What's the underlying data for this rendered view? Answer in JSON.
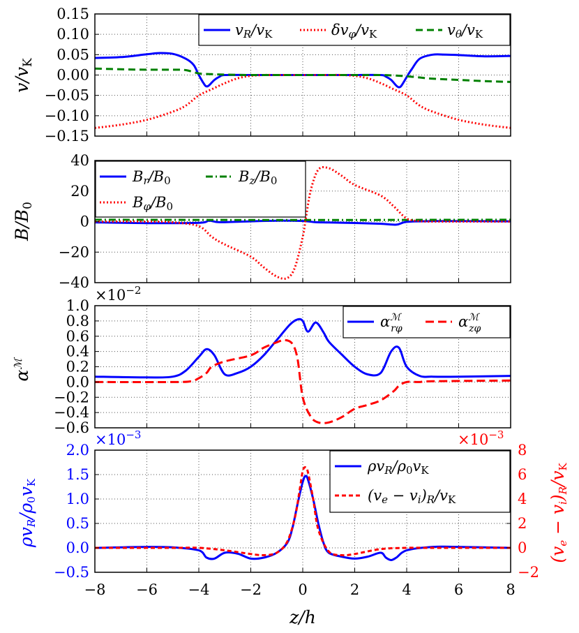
{
  "colors": {
    "blue": "#0000ff",
    "red": "#ff0000",
    "green": "#008000",
    "black": "#000000",
    "grid": "#555555"
  },
  "x_axis": {
    "label": "z/h",
    "ticks": [
      -8,
      -6,
      -4,
      -2,
      0,
      2,
      4,
      6,
      8
    ],
    "tick_labels": [
      "−8",
      "−6",
      "−4",
      "−2",
      "0",
      "2",
      "4",
      "6",
      "8"
    ],
    "range": [
      -8,
      8
    ]
  },
  "chart_data": [
    {
      "type": "line",
      "ylabel": "v/vK",
      "ylim": [
        -0.15,
        0.15
      ],
      "yticks": [
        -0.15,
        -0.1,
        -0.05,
        0.0,
        0.05,
        0.1,
        0.15
      ],
      "ytick_labels": [
        "−0.15",
        "−0.10",
        "−0.05",
        "0.00",
        "0.05",
        "0.10",
        "0.15"
      ],
      "legend_position": "top-right",
      "series": [
        {
          "name": "v_R/v_K",
          "color": "blue",
          "dash": "solid",
          "x": [
            -8,
            -7,
            -6,
            -5.5,
            -5,
            -4.5,
            -4.2,
            -4,
            -3.8,
            -3.7,
            -3.6,
            -3.4,
            -3.2,
            -3,
            -2,
            -1,
            0,
            1,
            2,
            3,
            3.2,
            3.4,
            3.6,
            3.7,
            3.8,
            4,
            4.2,
            4.5,
            5,
            5.5,
            6,
            7,
            8
          ],
          "y": [
            0.042,
            0.044,
            0.051,
            0.054,
            0.052,
            0.04,
            0.025,
            0.0,
            -0.022,
            -0.028,
            -0.025,
            -0.012,
            -0.004,
            0.0,
            0.0,
            0.0,
            0.0,
            0.0,
            0.0,
            0.0,
            -0.004,
            -0.012,
            -0.026,
            -0.03,
            -0.026,
            -0.005,
            0.015,
            0.04,
            0.05,
            0.05,
            0.049,
            0.046,
            0.047
          ]
        },
        {
          "name": "δv_φ/v_K",
          "color": "red",
          "dash": "dot",
          "x": [
            -8,
            -7,
            -6,
            -5,
            -4.5,
            -4,
            -3.5,
            -3,
            -2.5,
            -2,
            -1.5,
            -1,
            0,
            1,
            1.5,
            2,
            2.5,
            3,
            3.5,
            4,
            4.5,
            5,
            6,
            7,
            8
          ],
          "y": [
            -0.13,
            -0.122,
            -0.11,
            -0.09,
            -0.075,
            -0.05,
            -0.035,
            -0.02,
            -0.008,
            -0.002,
            0.0,
            0.0,
            0.0,
            0.0,
            0.0,
            -0.002,
            -0.008,
            -0.02,
            -0.035,
            -0.05,
            -0.075,
            -0.09,
            -0.11,
            -0.122,
            -0.13
          ]
        },
        {
          "name": "v_θ/v_K",
          "color": "green",
          "dash": "dash",
          "x": [
            -8,
            -7,
            -6,
            -5,
            -4.5,
            -4,
            -3.5,
            -3,
            -2,
            0,
            2,
            3,
            3.5,
            4,
            4.5,
            5,
            6,
            7,
            8
          ],
          "y": [
            0.016,
            0.014,
            0.013,
            0.013,
            0.012,
            0.004,
            0.002,
            0.001,
            0.0,
            0.0,
            0.0,
            0.0,
            -0.001,
            -0.003,
            -0.006,
            -0.009,
            -0.012,
            -0.015,
            -0.017
          ]
        }
      ]
    },
    {
      "type": "line",
      "ylabel": "B/B0",
      "ylim": [
        -40,
        40
      ],
      "yticks": [
        -40,
        -20,
        0,
        20,
        40
      ],
      "ytick_labels": [
        "−40",
        "−20",
        "0",
        "20",
        "40"
      ],
      "legend_position": "top-left",
      "series": [
        {
          "name": "B_r/B_0",
          "color": "blue",
          "dash": "solid",
          "x": [
            -8,
            -6,
            -4,
            -3.6,
            -3.2,
            -2,
            -1,
            0,
            0.5,
            1,
            2,
            3,
            3.6,
            4,
            5,
            6,
            8
          ],
          "y": [
            -0.5,
            -1,
            -0.8,
            0.6,
            -0.4,
            0.2,
            0.6,
            0.4,
            -0.4,
            -0.6,
            -0.9,
            -1.4,
            -2.0,
            -0.2,
            0.3,
            0.3,
            0.2
          ]
        },
        {
          "name": "B_z/B_0",
          "color": "green",
          "dash": "dashdot",
          "x": [
            -8,
            -4,
            0,
            4,
            8
          ],
          "y": [
            1.2,
            1.1,
            1.0,
            1.1,
            1.2
          ]
        },
        {
          "name": "B_φ/B_0",
          "color": "red",
          "dash": "dot",
          "x": [
            -8,
            -6,
            -5,
            -4,
            -3.5,
            -3,
            -2,
            -1.5,
            -1,
            -0.6,
            -0.3,
            0,
            0.1,
            0.3,
            0.6,
            1,
            1.5,
            2,
            3,
            3.5,
            4,
            4.5,
            5,
            6,
            8
          ],
          "y": [
            0,
            0,
            -0.5,
            -3,
            -10,
            -15,
            -23,
            -30,
            -36,
            -37,
            -30,
            -10,
            0,
            20,
            34,
            35,
            30,
            24,
            17,
            10,
            2,
            0.3,
            0,
            0,
            0
          ]
        }
      ]
    },
    {
      "type": "line",
      "ylabel": "α^M",
      "multiplier": "×10−2",
      "ylim": [
        -0.6,
        1.0
      ],
      "yticks": [
        -0.6,
        -0.4,
        -0.2,
        0.0,
        0.2,
        0.4,
        0.6,
        0.8,
        1.0
      ],
      "ytick_labels": [
        "−0.6",
        "−0.4",
        "−0.2",
        "0.0",
        "0.2",
        "0.4",
        "0.6",
        "0.8",
        "1.0"
      ],
      "legend_position": "top-right",
      "series": [
        {
          "name": "α^M_rφ",
          "color": "blue",
          "dash": "solid",
          "x": [
            -8,
            -6,
            -5,
            -4.5,
            -4,
            -3.7,
            -3.4,
            -3,
            -2.5,
            -2,
            -1.5,
            -1,
            -0.5,
            -0.2,
            0,
            0.2,
            0.5,
            0.8,
            1,
            1.5,
            2,
            2.5,
            3,
            3.4,
            3.7,
            4,
            4.5,
            5,
            6,
            8
          ],
          "y": [
            0.07,
            0.06,
            0.07,
            0.15,
            0.33,
            0.43,
            0.35,
            0.1,
            0.12,
            0.2,
            0.35,
            0.55,
            0.75,
            0.82,
            0.8,
            0.66,
            0.78,
            0.65,
            0.53,
            0.36,
            0.2,
            0.1,
            0.12,
            0.4,
            0.45,
            0.2,
            0.08,
            0.07,
            0.07,
            0.08
          ]
        },
        {
          "name": "α^M_zφ",
          "color": "red",
          "dash": "dash",
          "x": [
            -8,
            -5,
            -4.3,
            -4,
            -3.7,
            -3.5,
            -3,
            -2,
            -1.5,
            -1,
            -0.7,
            -0.4,
            -0.2,
            0,
            0.3,
            0.6,
            1,
            1.5,
            2,
            2.5,
            3,
            3.5,
            3.7,
            4,
            4.5,
            5,
            8
          ],
          "y": [
            0.0,
            0.0,
            0.01,
            0.05,
            0.12,
            0.2,
            0.27,
            0.35,
            0.45,
            0.52,
            0.55,
            0.5,
            0.3,
            -0.2,
            -0.45,
            -0.53,
            -0.53,
            -0.46,
            -0.35,
            -0.3,
            -0.24,
            -0.12,
            -0.05,
            0.0,
            0.0,
            0.01,
            0.02
          ]
        }
      ]
    },
    {
      "type": "line",
      "ylabel": "ρv_R/ρ0v_K",
      "ylabel_right": "(v_e − v_i)_R/v_K",
      "multiplier": "×10−3",
      "multiplier_right": "×10−3",
      "ylim": [
        -0.5,
        2.0
      ],
      "ylim_right": [
        -2,
        8
      ],
      "yticks": [
        -0.5,
        0.0,
        0.5,
        1.0,
        1.5,
        2.0
      ],
      "ytick_labels": [
        "−0.5",
        "0.0",
        "0.5",
        "1.0",
        "1.5",
        "2.0"
      ],
      "yticks_right": [
        -2,
        0,
        2,
        4,
        6,
        8
      ],
      "ytick_labels_right": [
        "−2",
        "0",
        "2",
        "4",
        "6",
        "8"
      ],
      "legend_position": "top-right",
      "series": [
        {
          "name": "ρv_R/ρ_0v_K",
          "color": "blue",
          "dash": "solid",
          "axis": "left",
          "x": [
            -8,
            -6,
            -5,
            -4,
            -3.7,
            -3.4,
            -3,
            -2.5,
            -2,
            -1.5,
            -1,
            -0.6,
            -0.4,
            -0.2,
            0,
            0.1,
            0.2,
            0.4,
            0.6,
            0.8,
            1,
            1.5,
            2,
            2.5,
            3,
            3.2,
            3.4,
            3.6,
            4,
            5,
            6,
            8
          ],
          "y": [
            0.0,
            0.02,
            0.01,
            -0.05,
            -0.2,
            -0.22,
            -0.1,
            -0.12,
            -0.22,
            -0.2,
            -0.1,
            0.1,
            0.4,
            0.9,
            1.35,
            1.47,
            1.4,
            1.0,
            0.5,
            0.1,
            -0.1,
            -0.18,
            -0.22,
            -0.18,
            -0.1,
            -0.2,
            -0.25,
            -0.2,
            -0.05,
            0.02,
            0.02,
            0.0
          ]
        },
        {
          "name": "(v_e − v_i)_R/v_K",
          "color": "red",
          "dash": "dash",
          "axis": "right",
          "x": [
            -8,
            -5,
            -4,
            -3,
            -2,
            -1.5,
            -1,
            -0.6,
            -0.3,
            -0.1,
            0,
            0.1,
            0.2,
            0.4,
            0.6,
            1,
            1.5,
            2,
            3,
            4,
            5,
            8
          ],
          "y": [
            0,
            0,
            0,
            -0.2,
            -0.5,
            -0.6,
            -0.4,
            0.5,
            2.5,
            5.0,
            6.3,
            6.6,
            6.2,
            4.0,
            1.5,
            -0.3,
            -0.6,
            -0.5,
            -0.1,
            0,
            0,
            0
          ]
        }
      ]
    }
  ]
}
